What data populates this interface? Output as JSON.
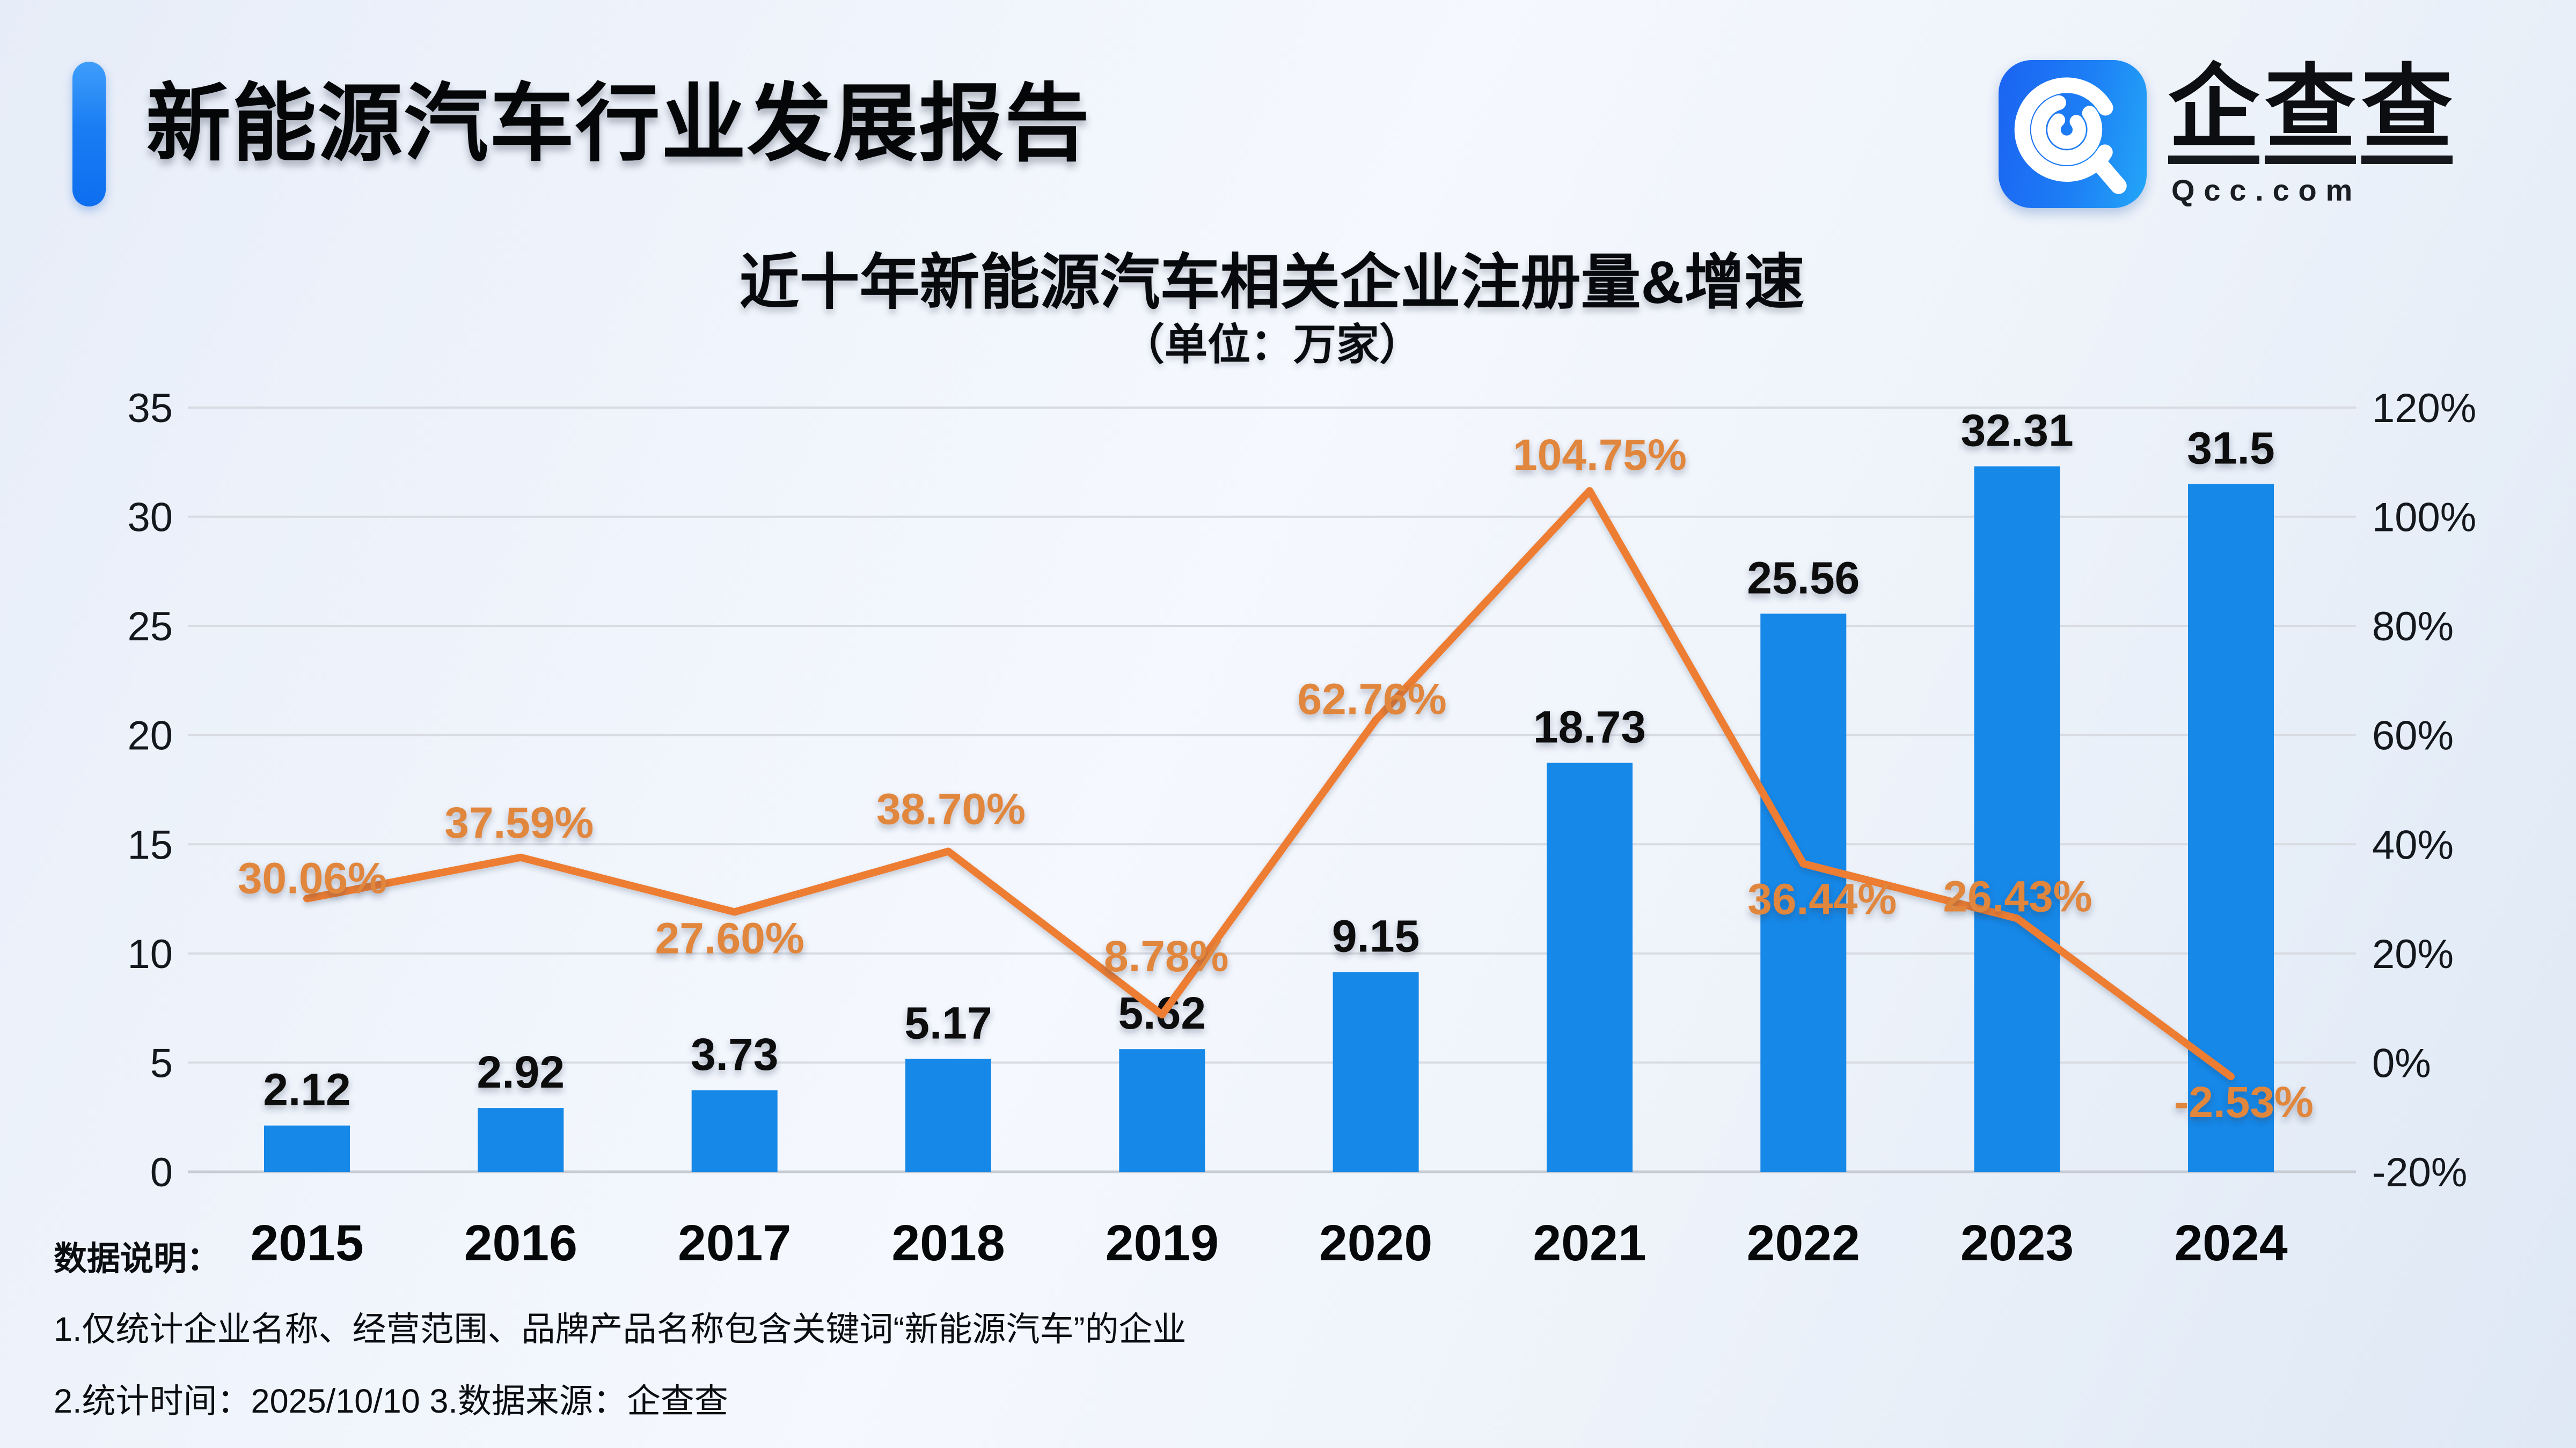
{
  "header": {
    "title": "新能源汽车行业发展报告"
  },
  "logo": {
    "icon": "qcc-logo-icon",
    "char1": "企",
    "char2": "查",
    "char3": "查",
    "domain": "Qcc.com"
  },
  "chart_data": {
    "type": "bar+line",
    "title": "近十年新能源汽车相关企业注册量&增速",
    "subtitle": "（单位：万家）",
    "unit": "万家",
    "categories": [
      "2015",
      "2016",
      "2017",
      "2018",
      "2019",
      "2020",
      "2021",
      "2022",
      "2023",
      "2024"
    ],
    "series": [
      {
        "name": "企业注册量",
        "type": "bar",
        "color": "#1688E8",
        "values": [
          2.12,
          2.92,
          3.73,
          5.17,
          5.62,
          9.15,
          18.73,
          25.56,
          32.31,
          31.5
        ],
        "labels": [
          "2.12",
          "2.92",
          "3.73",
          "5.17",
          "5.62",
          "9.15",
          "18.73",
          "25.56",
          "32.31",
          "31.5"
        ]
      },
      {
        "name": "增速",
        "type": "line",
        "color": "#ED7D31",
        "values": [
          30.06,
          37.59,
          27.6,
          38.7,
          8.78,
          62.76,
          104.75,
          36.44,
          26.43,
          -2.53
        ],
        "labels": [
          "30.06%",
          "37.59%",
          "27.60%",
          "38.70%",
          "8.78%",
          "62.76%",
          "104.75%",
          "36.44%",
          "26.43%",
          "-2.53%"
        ]
      }
    ],
    "left_axis": {
      "min": 0,
      "max": 35,
      "ticks": [
        0,
        5,
        10,
        15,
        20,
        25,
        30,
        35
      ]
    },
    "right_axis": {
      "min": -20,
      "max": 120,
      "tick_values": [
        -20,
        0,
        20,
        40,
        60,
        80,
        100,
        120
      ],
      "tick_labels": [
        "-20%",
        "0%",
        "20%",
        "40%",
        "60%",
        "80%",
        "100%",
        "120%"
      ]
    },
    "grid": true,
    "legend": false
  },
  "footer": {
    "label": "数据说明：",
    "note1": "1.仅统计企业名称、经营范围、品牌产品名称包含关键词“新能源汽车”的企业",
    "note2": "2.统计时间：2025/10/10    3.数据来源：企查查"
  }
}
